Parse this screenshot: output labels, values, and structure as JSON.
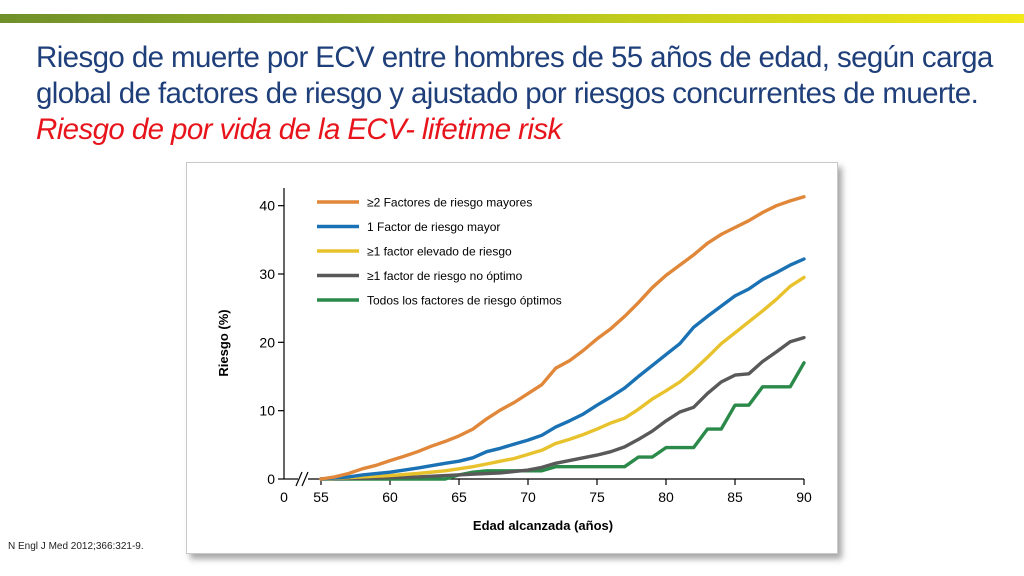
{
  "slide": {
    "title_main": "Riesgo de muerte por ECV entre hombres de 55 años de edad, según carga global de factores de riesgo y ajustado por riesgos concurrentes de muerte.",
    "title_accent": "Riesgo de por vida de la ECV- lifetime risk",
    "citation": "N Engl J Med 2012;366:321-9."
  },
  "chart_data": {
    "type": "line",
    "title": "",
    "xlabel": "Edad alcanzada (años)",
    "ylabel": "Riesgo (%)",
    "xlim": [
      55,
      90
    ],
    "ylim": [
      0,
      42
    ],
    "x_origin_label": "0",
    "x_ticks": [
      55,
      60,
      65,
      70,
      75,
      80,
      85,
      90
    ],
    "y_ticks": [
      0,
      10,
      20,
      30,
      40
    ],
    "grid": false,
    "legend_position": "top-left",
    "series": [
      {
        "name": "≥2 Factores de riesgo mayores",
        "color": "#e0873a",
        "points": [
          [
            55,
            0
          ],
          [
            56,
            0.3
          ],
          [
            57,
            0.8
          ],
          [
            58,
            1.5
          ],
          [
            59,
            2.0
          ],
          [
            60,
            2.7
          ],
          [
            61,
            3.3
          ],
          [
            62,
            4.0
          ],
          [
            63,
            4.8
          ],
          [
            64,
            5.5
          ],
          [
            65,
            6.3
          ],
          [
            66,
            7.3
          ],
          [
            67,
            8.8
          ],
          [
            68,
            10.1
          ],
          [
            69,
            11.2
          ],
          [
            70,
            12.5
          ],
          [
            71,
            13.8
          ],
          [
            72,
            16.2
          ],
          [
            73,
            17.3
          ],
          [
            74,
            18.8
          ],
          [
            75,
            20.5
          ],
          [
            76,
            22.0
          ],
          [
            77,
            23.8
          ],
          [
            78,
            25.8
          ],
          [
            79,
            28.0
          ],
          [
            80,
            29.8
          ],
          [
            81,
            31.3
          ],
          [
            82,
            32.8
          ],
          [
            83,
            34.5
          ],
          [
            84,
            35.8
          ],
          [
            85,
            36.8
          ],
          [
            86,
            37.8
          ],
          [
            87,
            39.0
          ],
          [
            88,
            40.0
          ],
          [
            89,
            40.7
          ],
          [
            90,
            41.3
          ]
        ]
      },
      {
        "name": "1 Factor de riesgo mayor",
        "color": "#1a72b4",
        "points": [
          [
            55,
            0
          ],
          [
            57,
            0.3
          ],
          [
            58,
            0.6
          ],
          [
            60,
            1.0
          ],
          [
            62,
            1.6
          ],
          [
            64,
            2.3
          ],
          [
            65,
            2.6
          ],
          [
            66,
            3.1
          ],
          [
            67,
            4.0
          ],
          [
            68,
            4.5
          ],
          [
            69,
            5.1
          ],
          [
            70,
            5.7
          ],
          [
            71,
            6.4
          ],
          [
            72,
            7.6
          ],
          [
            73,
            8.5
          ],
          [
            74,
            9.5
          ],
          [
            75,
            10.8
          ],
          [
            76,
            12.0
          ],
          [
            77,
            13.3
          ],
          [
            78,
            15.0
          ],
          [
            79,
            16.6
          ],
          [
            80,
            18.2
          ],
          [
            81,
            19.8
          ],
          [
            82,
            22.2
          ],
          [
            83,
            23.8
          ],
          [
            84,
            25.3
          ],
          [
            85,
            26.8
          ],
          [
            86,
            27.8
          ],
          [
            87,
            29.2
          ],
          [
            88,
            30.2
          ],
          [
            89,
            31.3
          ],
          [
            90,
            32.2
          ]
        ]
      },
      {
        "name": "≥1 factor elevado de riesgo",
        "color": "#e8c22c",
        "points": [
          [
            55,
            0
          ],
          [
            58,
            0.3
          ],
          [
            60,
            0.5
          ],
          [
            62,
            0.8
          ],
          [
            64,
            1.2
          ],
          [
            65,
            1.5
          ],
          [
            66,
            1.8
          ],
          [
            67,
            2.2
          ],
          [
            68,
            2.6
          ],
          [
            69,
            3.0
          ],
          [
            70,
            3.6
          ],
          [
            71,
            4.2
          ],
          [
            72,
            5.2
          ],
          [
            73,
            5.8
          ],
          [
            74,
            6.5
          ],
          [
            75,
            7.3
          ],
          [
            76,
            8.2
          ],
          [
            77,
            8.9
          ],
          [
            78,
            10.2
          ],
          [
            79,
            11.7
          ],
          [
            80,
            12.9
          ],
          [
            81,
            14.2
          ],
          [
            82,
            15.9
          ],
          [
            83,
            17.8
          ],
          [
            84,
            19.8
          ],
          [
            85,
            21.4
          ],
          [
            86,
            23.0
          ],
          [
            87,
            24.6
          ],
          [
            88,
            26.3
          ],
          [
            89,
            28.2
          ],
          [
            90,
            29.5
          ]
        ]
      },
      {
        "name": "≥1 factor de riesgo no óptimo",
        "color": "#595959",
        "points": [
          [
            55,
            0
          ],
          [
            60,
            0.2
          ],
          [
            62,
            0.3
          ],
          [
            64,
            0.5
          ],
          [
            66,
            0.7
          ],
          [
            68,
            0.9
          ],
          [
            70,
            1.3
          ],
          [
            71,
            1.7
          ],
          [
            72,
            2.3
          ],
          [
            73,
            2.7
          ],
          [
            74,
            3.1
          ],
          [
            75,
            3.5
          ],
          [
            76,
            4.0
          ],
          [
            77,
            4.7
          ],
          [
            78,
            5.8
          ],
          [
            79,
            7.0
          ],
          [
            80,
            8.5
          ],
          [
            81,
            9.8
          ],
          [
            82,
            10.5
          ],
          [
            83,
            12.5
          ],
          [
            84,
            14.2
          ],
          [
            85,
            15.2
          ],
          [
            86,
            15.4
          ],
          [
            87,
            17.2
          ],
          [
            88,
            18.6
          ],
          [
            89,
            20.1
          ],
          [
            90,
            20.7
          ]
        ]
      },
      {
        "name": "Todos los factores de riesgo óptimos",
        "color": "#2b8a4a",
        "points": [
          [
            55,
            0
          ],
          [
            64,
            0
          ],
          [
            65,
            0.6
          ],
          [
            66,
            1.0
          ],
          [
            67,
            1.2
          ],
          [
            71,
            1.2
          ],
          [
            72,
            1.8
          ],
          [
            77,
            1.8
          ],
          [
            78,
            3.2
          ],
          [
            79,
            3.2
          ],
          [
            80,
            4.6
          ],
          [
            82,
            4.6
          ],
          [
            83,
            7.3
          ],
          [
            84,
            7.3
          ],
          [
            85,
            10.8
          ],
          [
            86,
            10.8
          ],
          [
            87,
            13.5
          ],
          [
            89,
            13.5
          ],
          [
            90,
            17.0
          ]
        ]
      }
    ]
  }
}
